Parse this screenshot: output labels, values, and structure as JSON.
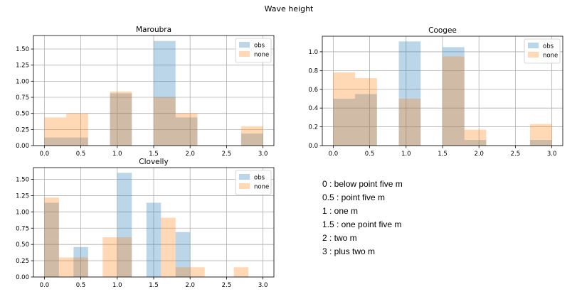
{
  "figure_title": "Wave height",
  "colors": {
    "obs": "#1f77b4",
    "none": "#ff7f0e",
    "axis": "#000000",
    "grid": "#b0b0b0"
  },
  "chart_data": [
    {
      "type": "bar",
      "title": "Maroubra",
      "bin_edges": [
        0.0,
        0.3,
        0.6,
        0.9,
        1.2,
        1.5,
        1.8,
        2.1,
        2.4,
        2.7,
        3.0
      ],
      "series": [
        {
          "name": "obs",
          "values": [
            0.125,
            0.125,
            0,
            0.8125,
            0,
            1.625,
            0.4375,
            0,
            0,
            0.1875
          ]
        },
        {
          "name": "none",
          "values": [
            0.4375,
            0.5,
            0,
            0.84,
            0,
            0.75,
            0.5,
            0,
            0,
            0.3
          ]
        }
      ],
      "xticks": [
        "0.0",
        "0.5",
        "1.0",
        "1.5",
        "2.0",
        "2.5",
        "3.0"
      ],
      "xtick_values": [
        0,
        0.5,
        1,
        1.5,
        2,
        2.5,
        3
      ],
      "yticks": [
        "0.00",
        "0.25",
        "0.50",
        "0.75",
        "1.00",
        "1.25",
        "1.50"
      ],
      "ytick_values": [
        0,
        0.25,
        0.5,
        0.75,
        1.0,
        1.25,
        1.5
      ],
      "xlim": [
        -0.15,
        3.15
      ],
      "ylim": [
        0,
        1.71
      ],
      "grid": true,
      "legend": "upper right"
    },
    {
      "type": "bar",
      "title": "Coogee",
      "bin_edges": [
        0.0,
        0.3,
        0.6,
        0.9,
        1.2,
        1.5,
        1.8,
        2.1,
        2.4,
        2.7,
        3.0
      ],
      "series": [
        {
          "name": "obs",
          "values": [
            0.5,
            0.55,
            0,
            1.11,
            0,
            1.05,
            0.06,
            0,
            0,
            0.06
          ]
        },
        {
          "name": "none",
          "values": [
            0.78,
            0.72,
            0,
            0.5,
            0,
            0.95,
            0.17,
            0,
            0,
            0.23
          ]
        }
      ],
      "xticks": [
        "0.0",
        "0.5",
        "1.0",
        "1.5",
        "2.0",
        "2.5",
        "3.0"
      ],
      "xtick_values": [
        0,
        0.5,
        1,
        1.5,
        2,
        2.5,
        3
      ],
      "yticks": [
        "0.0",
        "0.2",
        "0.4",
        "0.6",
        "0.8",
        "1.0"
      ],
      "ytick_values": [
        0,
        0.2,
        0.4,
        0.6,
        0.8,
        1.0
      ],
      "xlim": [
        -0.15,
        3.15
      ],
      "ylim": [
        0,
        1.166
      ],
      "grid": true,
      "legend": "upper right"
    },
    {
      "type": "bar",
      "title": "Clovelly",
      "bin_edges": [
        0.0,
        0.2,
        0.4,
        0.6,
        0.8,
        1.0,
        1.2,
        1.4,
        1.6,
        1.8,
        2.0,
        2.2,
        2.4,
        2.6,
        2.8,
        3.0
      ],
      "series": [
        {
          "name": "obs",
          "values": [
            1.14,
            0,
            0.46,
            0,
            0,
            1.6,
            0,
            1.14,
            0,
            0.69,
            0,
            0,
            0,
            0,
            0
          ]
        },
        {
          "name": "none",
          "values": [
            1.22,
            0.3,
            0.3,
            0,
            0.61,
            0.61,
            0,
            0,
            0.91,
            0.15,
            0.15,
            0,
            0,
            0.15,
            0
          ]
        }
      ],
      "xticks": [
        "0.0",
        "0.5",
        "1.0",
        "1.5",
        "2.0",
        "2.5",
        "3.0"
      ],
      "xtick_values": [
        0,
        0.5,
        1,
        1.5,
        2,
        2.5,
        3
      ],
      "yticks": [
        "0.00",
        "0.25",
        "0.50",
        "0.75",
        "1.00",
        "1.25",
        "1.50"
      ],
      "ytick_values": [
        0,
        0.25,
        0.5,
        0.75,
        1.0,
        1.25,
        1.5
      ],
      "xlim": [
        -0.15,
        3.15
      ],
      "ylim": [
        0,
        1.68
      ],
      "grid": true,
      "legend": "upper right"
    }
  ],
  "legend_labels": {
    "obs": "obs",
    "none": "none"
  },
  "notes": [
    "0 : below point five m",
    "0.5 : point five m",
    "1 : one m",
    "1.5 : one point five m",
    "2 : two m",
    "3 : plus two m"
  ]
}
